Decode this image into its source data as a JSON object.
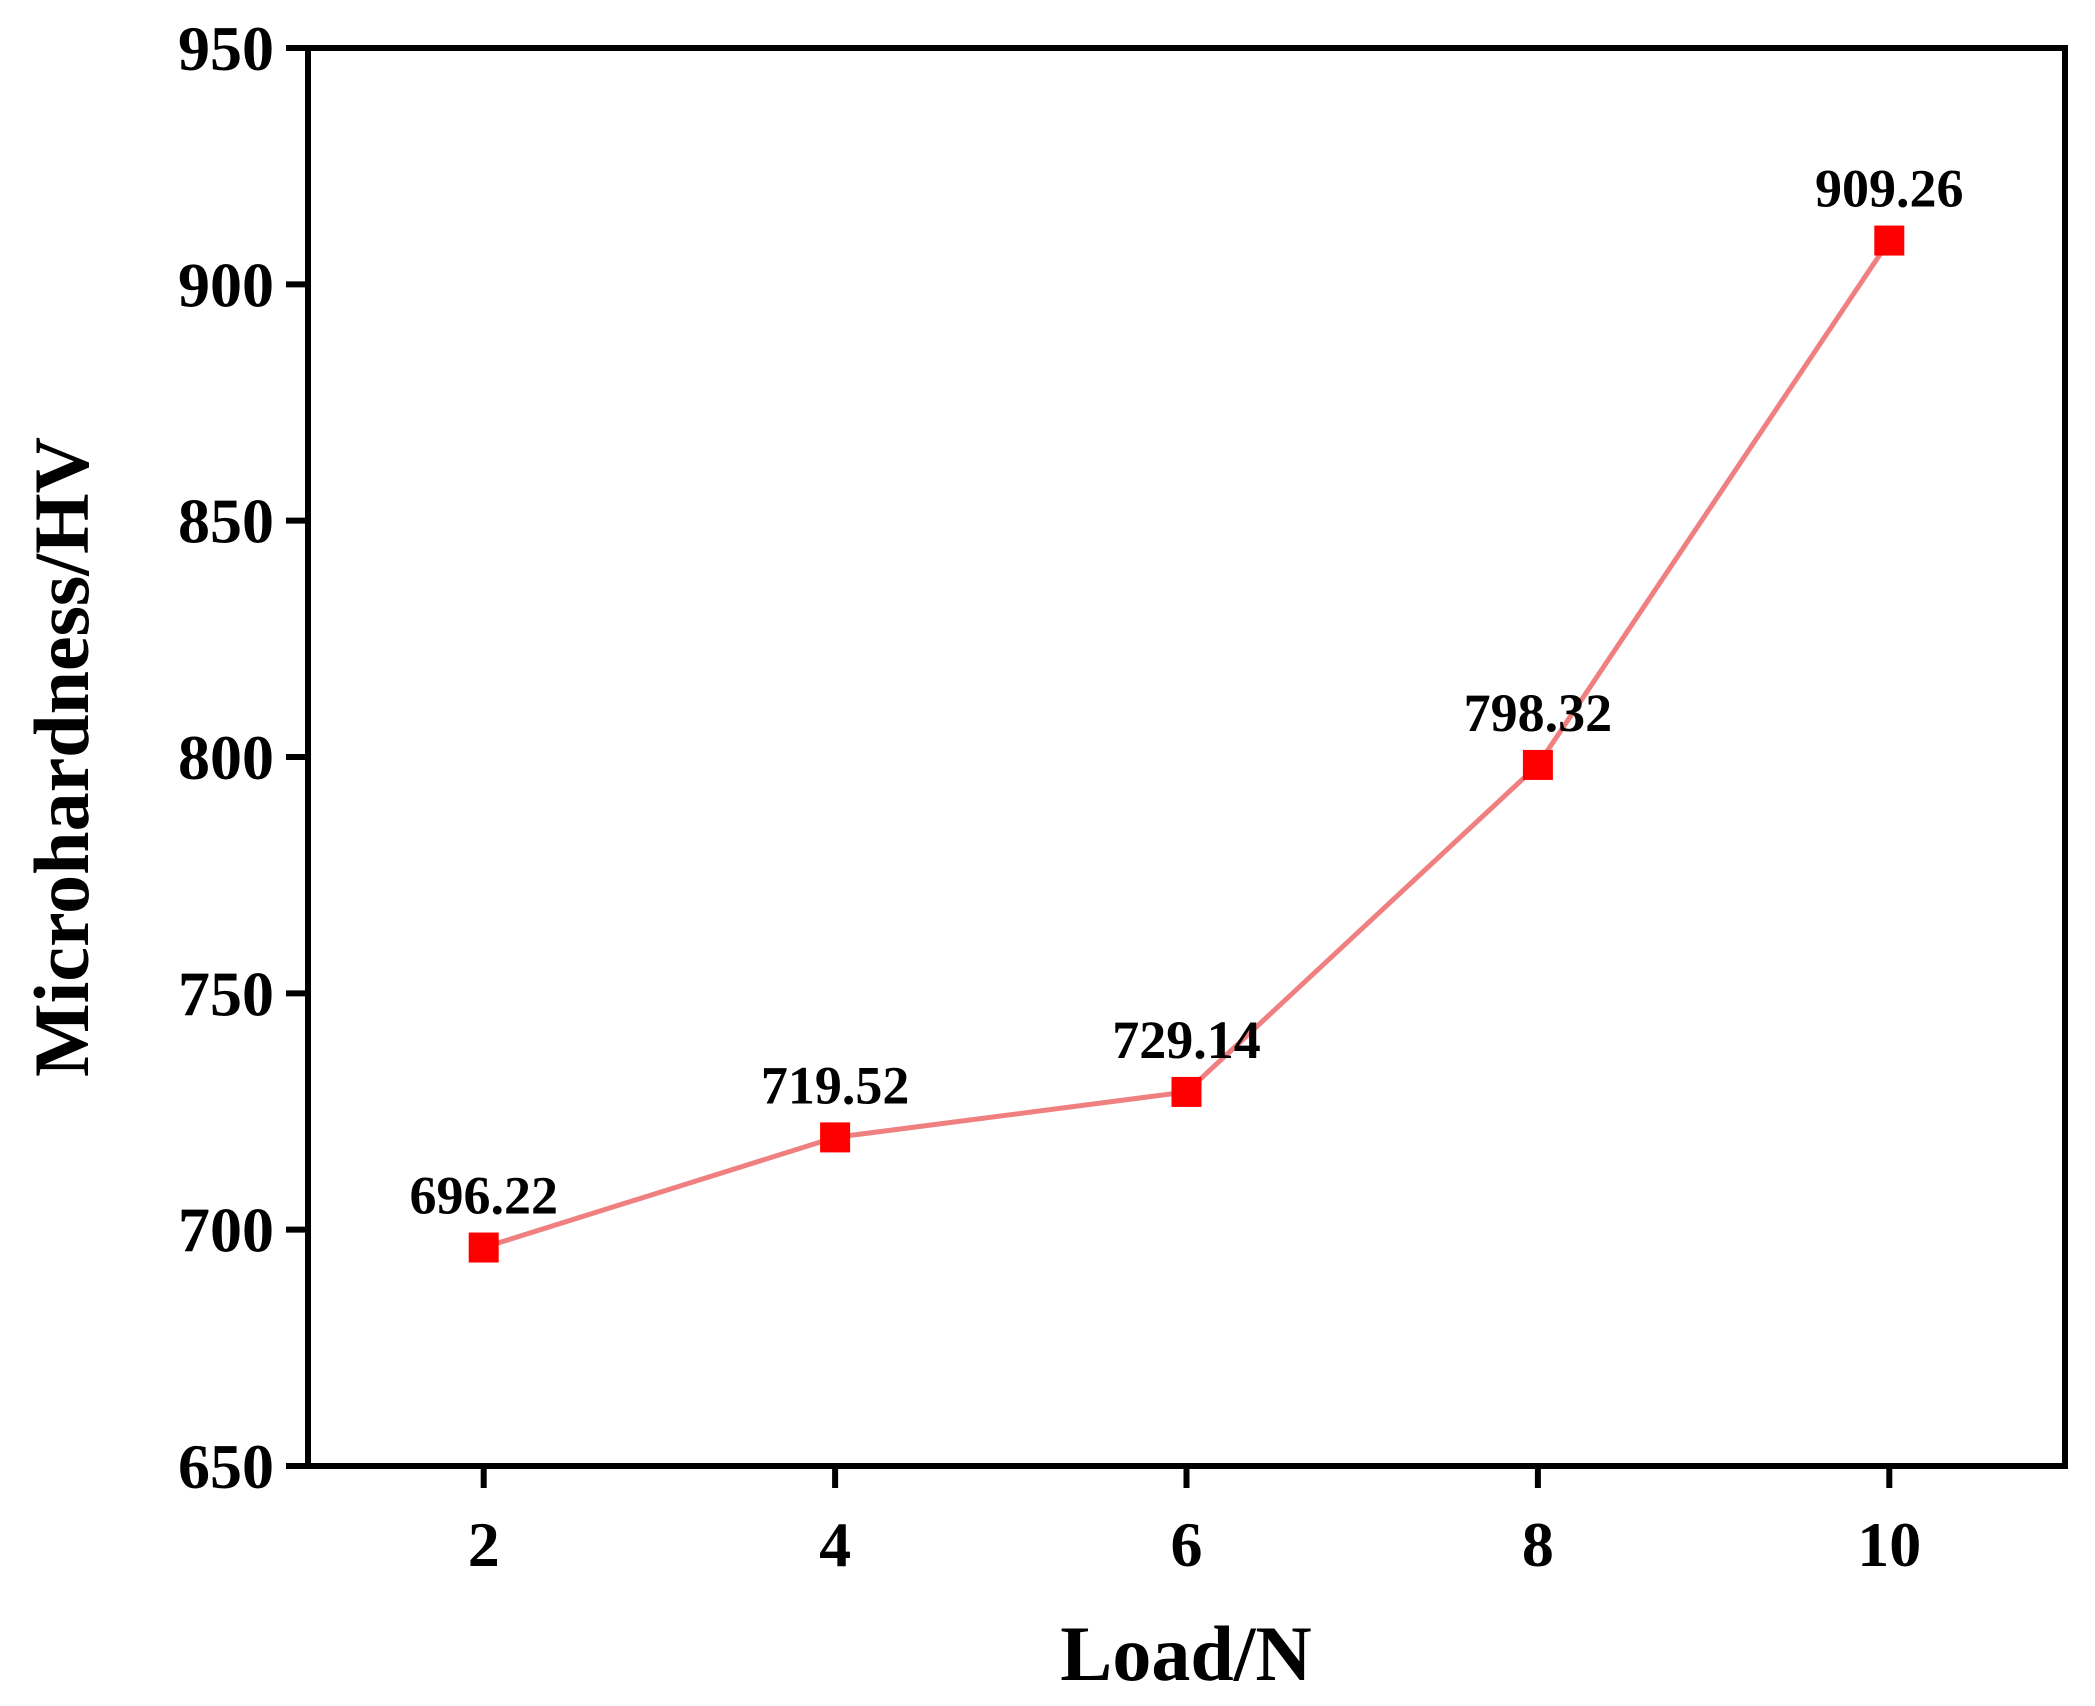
{
  "chart_data": {
    "type": "line",
    "title": "",
    "xlabel": "Load/N",
    "ylabel": "Microhardness/HV",
    "x": [
      2,
      4,
      6,
      8,
      10
    ],
    "series": [
      {
        "name": "Microhardness",
        "values": [
          696.22,
          719.52,
          729.14,
          798.32,
          909.26
        ],
        "data_labels": [
          "696.22",
          "719.52",
          "729.14",
          "798.32",
          "909.26"
        ]
      }
    ],
    "xlim": [
      1,
      11
    ],
    "ylim": [
      650,
      950
    ],
    "xticks": [
      2,
      4,
      6,
      8,
      10
    ],
    "xtick_labels": [
      "2",
      "4",
      "6",
      "8",
      "10"
    ],
    "yticks": [
      650,
      700,
      750,
      800,
      850,
      900,
      950
    ],
    "ytick_labels": [
      "650",
      "700",
      "750",
      "800",
      "850",
      "900",
      "950"
    ],
    "grid": false,
    "line_color": "#f08080",
    "marker_color": "#ff0000",
    "marker": "square"
  }
}
